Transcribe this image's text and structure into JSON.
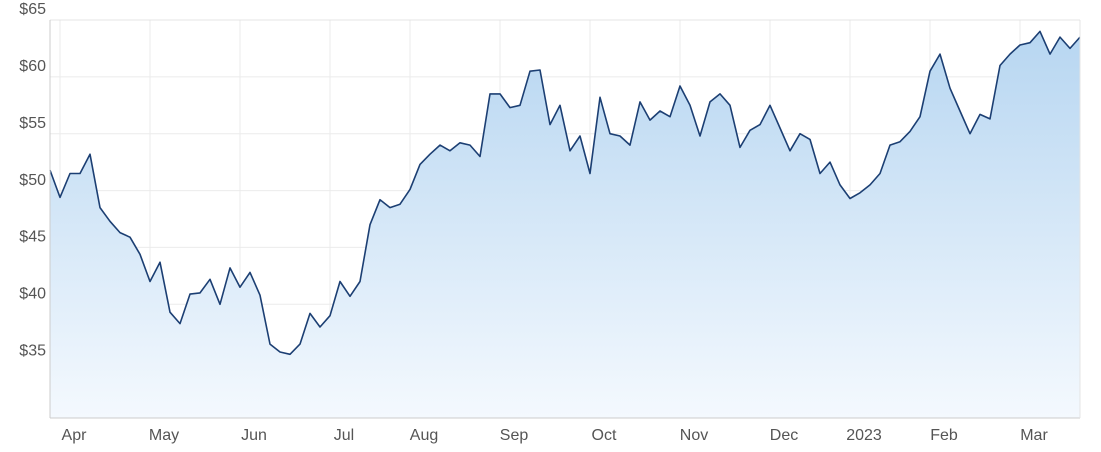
{
  "chart_data": {
    "type": "line",
    "categories": [
      null,
      "Apr",
      null,
      null,
      null,
      null,
      null,
      null,
      null,
      null,
      "May",
      null,
      null,
      null,
      null,
      null,
      null,
      null,
      null,
      "Jun",
      null,
      null,
      null,
      null,
      null,
      null,
      null,
      null,
      "Jul",
      null,
      null,
      null,
      null,
      null,
      null,
      null,
      "Aug",
      null,
      null,
      null,
      null,
      null,
      null,
      null,
      null,
      "Sep",
      null,
      null,
      null,
      null,
      null,
      null,
      null,
      null,
      "Oct",
      null,
      null,
      null,
      null,
      null,
      null,
      null,
      null,
      "Nov",
      null,
      null,
      null,
      null,
      null,
      null,
      null,
      null,
      "Dec",
      null,
      null,
      null,
      null,
      null,
      null,
      null,
      "2023",
      null,
      null,
      null,
      null,
      null,
      null,
      null,
      "Feb",
      null,
      null,
      null,
      null,
      null,
      null,
      null,
      null,
      "Mar",
      null,
      null,
      null,
      null,
      null,
      null
    ],
    "values": [
      51.8,
      49.4,
      51.5,
      51.5,
      53.2,
      48.5,
      47.3,
      46.3,
      45.9,
      44.4,
      42.0,
      43.7,
      39.3,
      38.3,
      40.9,
      41.0,
      42.2,
      40.0,
      43.2,
      41.5,
      42.8,
      40.8,
      36.5,
      35.8,
      35.6,
      36.5,
      39.2,
      38.0,
      39.0,
      42.0,
      40.7,
      42.0,
      47.0,
      49.2,
      48.5,
      48.8,
      50.1,
      52.3,
      53.2,
      54.0,
      53.5,
      54.2,
      54.0,
      53.0,
      58.5,
      58.5,
      57.3,
      57.5,
      60.5,
      60.6,
      55.8,
      57.5,
      53.5,
      54.8,
      51.5,
      58.2,
      55.0,
      54.8,
      54.0,
      57.8,
      56.2,
      57.0,
      56.5,
      59.2,
      57.5,
      54.8,
      57.8,
      58.5,
      57.5,
      53.8,
      55.3,
      55.8,
      57.5,
      55.5,
      53.5,
      55.0,
      54.5,
      51.5,
      52.5,
      50.5,
      49.3,
      49.8,
      50.5,
      51.5,
      54.0,
      54.3,
      55.2,
      56.5,
      60.5,
      62.0,
      59.0,
      57.0,
      55.0,
      56.7,
      56.3,
      61.0,
      62.0,
      62.8,
      63.0,
      64.0,
      62.0,
      63.5,
      62.5,
      63.5
    ],
    "color": "#1c3f73",
    "ylim": [
      30,
      65
    ],
    "yticks": [
      {
        "value": 35,
        "label": "$35"
      },
      {
        "value": 40,
        "label": "$40"
      },
      {
        "value": 45,
        "label": "$45"
      },
      {
        "value": 50,
        "label": "$50"
      },
      {
        "value": 55,
        "label": "$55"
      },
      {
        "value": 60,
        "label": "$60"
      },
      {
        "value": 65,
        "label": "$65"
      }
    ],
    "grid": true
  }
}
